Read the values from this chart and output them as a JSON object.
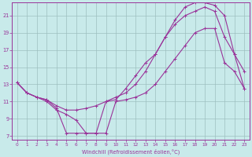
{
  "xlabel": "Windchill (Refroidissement éolien,°C)",
  "bg_color": "#c8eaea",
  "grid_color": "#9dbfbf",
  "line_color": "#993399",
  "xlim": [
    -0.5,
    23.5
  ],
  "ylim": [
    6.5,
    22.5
  ],
  "yticks": [
    7,
    9,
    11,
    13,
    15,
    17,
    19,
    21
  ],
  "xticks": [
    0,
    1,
    2,
    3,
    4,
    5,
    6,
    7,
    8,
    9,
    10,
    11,
    12,
    13,
    14,
    15,
    16,
    17,
    18,
    19,
    20,
    21,
    22,
    23
  ],
  "curve1_x": [
    0,
    1,
    2,
    3,
    4,
    5,
    6,
    7,
    8,
    9,
    10,
    11,
    12,
    13,
    14,
    15,
    16,
    17,
    18,
    19,
    20,
    21,
    22,
    23
  ],
  "curve1_y": [
    13.2,
    12.0,
    11.5,
    11.2,
    10.2,
    7.3,
    7.3,
    7.3,
    7.3,
    11.0,
    11.2,
    12.5,
    14.0,
    15.5,
    16.5,
    18.5,
    20.5,
    22.0,
    22.5,
    22.5,
    22.2,
    21.0,
    16.5,
    14.5
  ],
  "curve2_x": [
    0,
    1,
    2,
    3,
    4,
    5,
    6,
    7,
    8,
    9,
    10,
    11,
    12,
    13,
    14,
    15,
    16,
    17,
    18,
    19,
    20,
    21,
    22,
    23
  ],
  "curve2_y": [
    13.2,
    12.0,
    11.5,
    11.2,
    10.5,
    10.0,
    10.0,
    10.2,
    10.5,
    11.0,
    11.5,
    12.0,
    13.0,
    14.5,
    16.5,
    18.5,
    20.0,
    21.0,
    21.5,
    22.0,
    21.5,
    18.5,
    16.5,
    12.5
  ],
  "curve3_x": [
    0,
    1,
    2,
    3,
    4,
    5,
    6,
    7,
    8,
    9,
    10,
    11,
    12,
    13,
    14,
    15,
    16,
    17,
    18,
    19,
    20,
    21,
    22,
    23
  ],
  "curve3_y": [
    13.2,
    12.0,
    11.5,
    11.0,
    10.0,
    9.5,
    8.8,
    7.3,
    7.3,
    7.3,
    11.0,
    11.2,
    11.5,
    12.0,
    13.0,
    14.5,
    16.0,
    17.5,
    19.0,
    19.5,
    19.5,
    15.5,
    14.5,
    12.5
  ]
}
